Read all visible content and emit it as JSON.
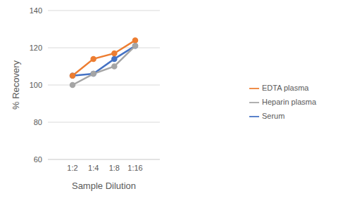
{
  "chart_data": {
    "type": "line",
    "x_label": "Sample Dilution",
    "y_label": "% Recovery",
    "categories": [
      "1:2",
      "1:4",
      "1:8",
      "1:16"
    ],
    "series": [
      {
        "name": "Serum",
        "color": "#4472c4",
        "values": [
          105,
          106,
          114,
          121
        ]
      },
      {
        "name": "EDTA plasma",
        "color": "#ed7d31",
        "values": [
          105,
          114,
          117,
          124
        ]
      },
      {
        "name": "Heparin plasma",
        "color": "#a5a5a5",
        "values": [
          100,
          106,
          110,
          121
        ]
      }
    ],
    "ylim": [
      60,
      140
    ],
    "yticks": [
      60,
      80,
      100,
      120,
      140
    ],
    "grid": true,
    "legend": "right",
    "marker": "circle"
  }
}
